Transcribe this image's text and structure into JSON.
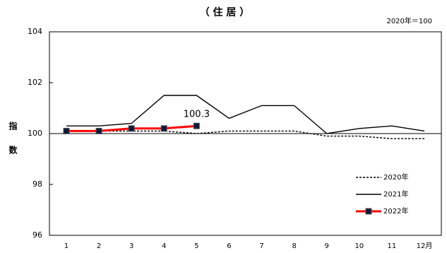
{
  "chart_data": {
    "type": "line",
    "title": "（ 住 居 ）",
    "subtitle": "2020年＝100",
    "y_label": "指数",
    "categories": [
      "1",
      "2",
      "3",
      "4",
      "5",
      "6",
      "7",
      "8",
      "9",
      "10",
      "11",
      "12月"
    ],
    "series": [
      {
        "name": "2020年",
        "color": "#000000",
        "dash": true,
        "values": [
          100.1,
          100.1,
          100.1,
          100.1,
          100.0,
          100.1,
          100.1,
          100.1,
          99.9,
          99.9,
          99.8,
          99.8
        ]
      },
      {
        "name": "2021年",
        "color": "#000000",
        "values": [
          100.3,
          100.3,
          100.4,
          101.5,
          101.5,
          100.6,
          101.1,
          101.1,
          100.0,
          100.2,
          100.3,
          100.1
        ]
      },
      {
        "name": "2022年",
        "color": "#ff0000",
        "marker_color": "#0a1a3a",
        "values": [
          100.1,
          100.1,
          100.2,
          100.2,
          100.3,
          null,
          null,
          null,
          null,
          null,
          null,
          null
        ],
        "value_labels": [
          null,
          null,
          null,
          null,
          "100.3",
          null,
          null,
          null,
          null,
          null,
          null,
          null
        ]
      }
    ],
    "ylim": [
      96,
      104
    ],
    "yticks": [
      96,
      98,
      100,
      102,
      104
    ],
    "legend": "lower right"
  }
}
